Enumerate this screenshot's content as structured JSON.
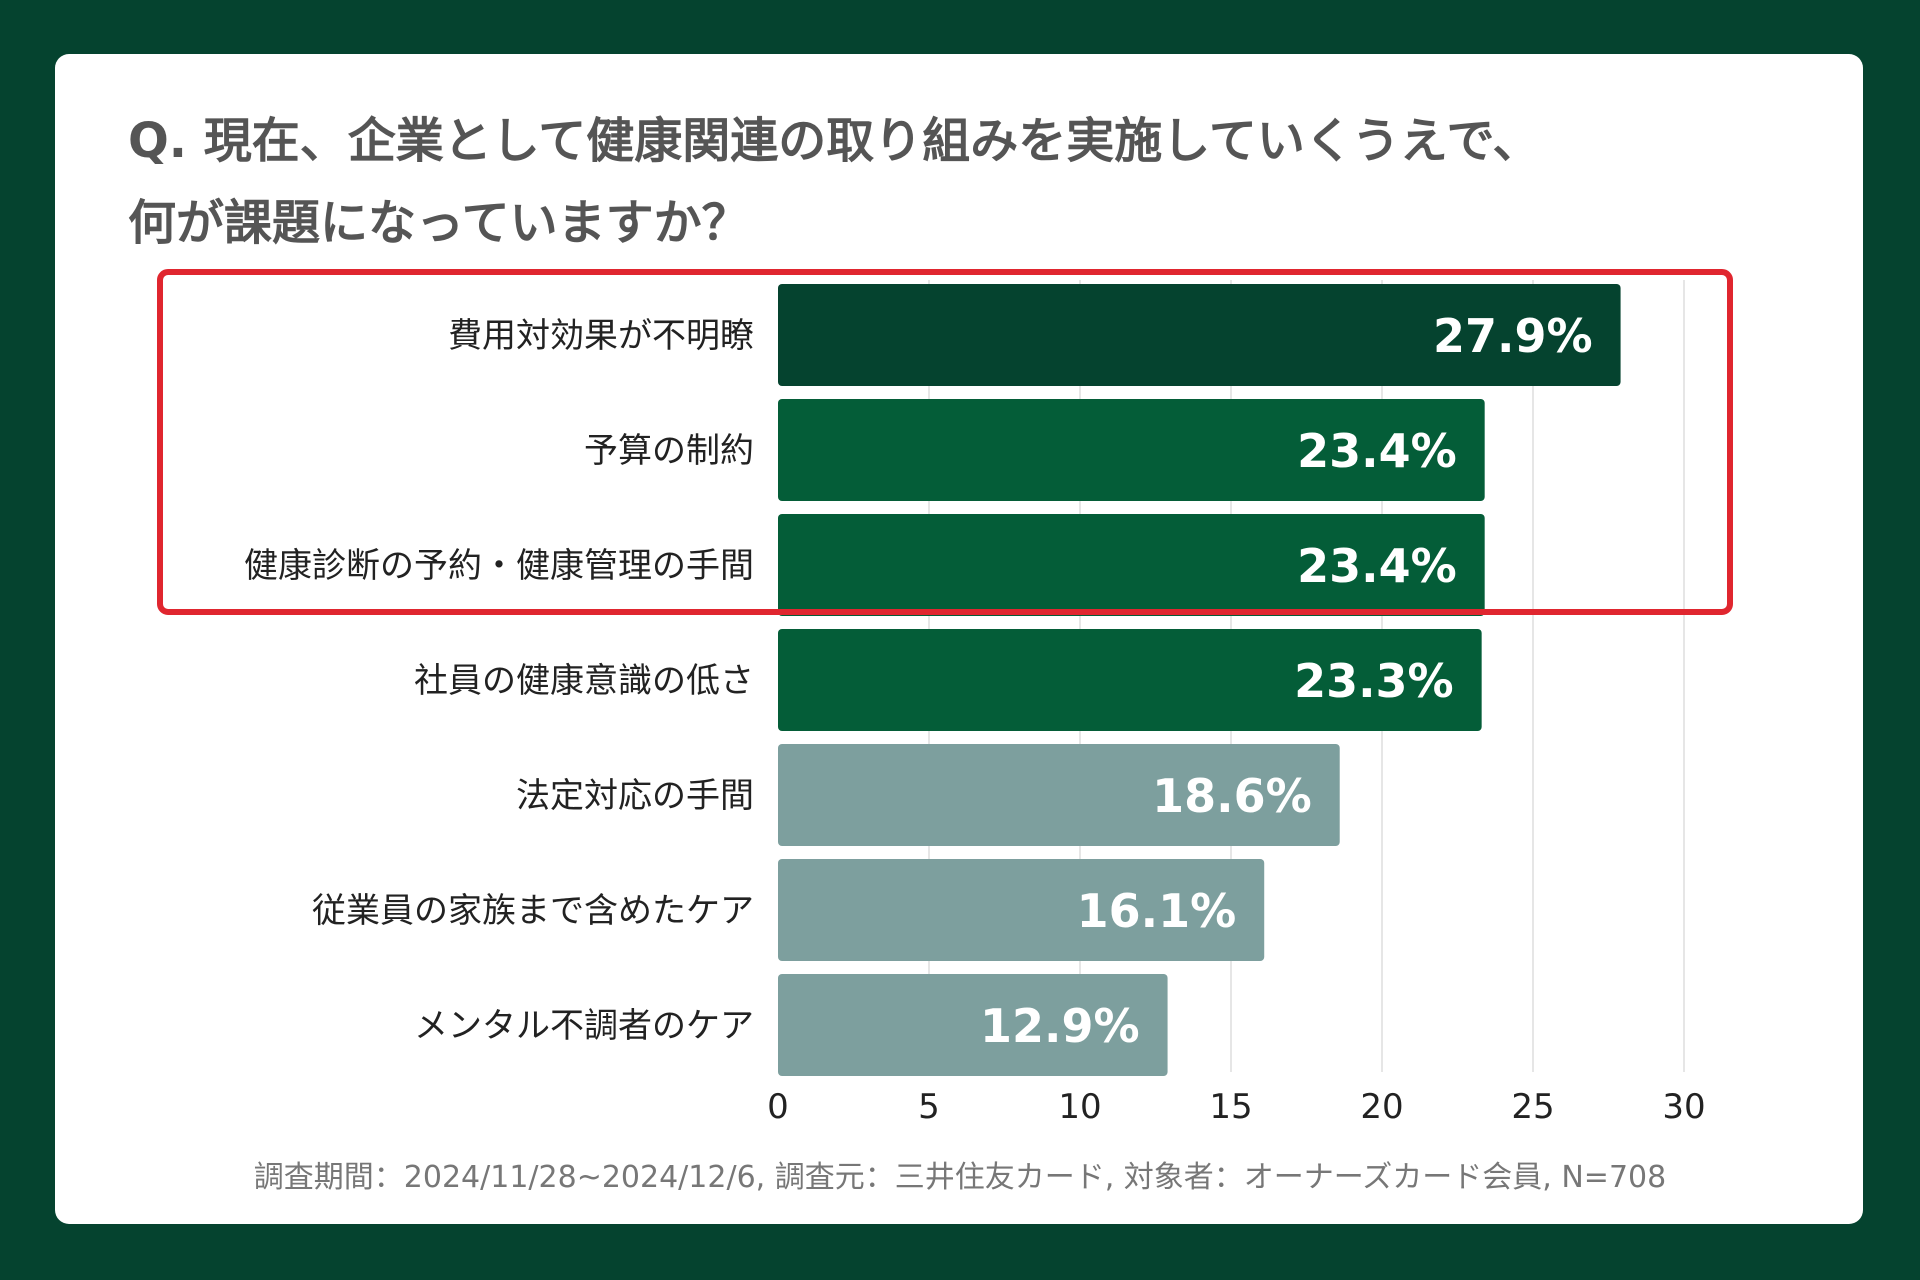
{
  "title": {
    "line1": "Q. 現在、企業として健康関連の取り組みを実施していくうえで、",
    "line2": "何が課題になっていますか？"
  },
  "chart_data": {
    "type": "bar",
    "orientation": "horizontal",
    "categories": [
      "費用対効果が不明瞭",
      "予算の制約",
      "健康診断の予約・健康管理の手間",
      "社員の健康意識の低さ",
      "法定対応の手間",
      "従業員の家族まで含めたケア",
      "メンタル不調者のケア"
    ],
    "values": [
      27.9,
      23.4,
      23.4,
      23.3,
      18.6,
      16.1,
      12.9
    ],
    "value_labels": [
      "27.9%",
      "23.4%",
      "23.4%",
      "23.3%",
      "18.6%",
      "16.1%",
      "12.9%"
    ],
    "bar_colors": [
      "#05432f",
      "#045d38",
      "#045d38",
      "#045d38",
      "#7d9f9e",
      "#7d9f9e",
      "#7d9f9e"
    ],
    "xlim": [
      0,
      30
    ],
    "xticks": [
      0,
      5,
      10,
      15,
      20,
      25,
      30
    ],
    "grid": true,
    "highlight": {
      "from_index": 0,
      "to_index": 2,
      "color": "#e0262f"
    }
  },
  "footer": "調査期間：2024/11/28~2024/12/6, 調査元：三井住友カード, 対象者：オーナーズカード会員, N=708",
  "colors": {
    "background": "#05432f",
    "card": "#ffffff",
    "label_text": "#222222",
    "axis_text": "#222222",
    "grid": "#dddddd"
  }
}
